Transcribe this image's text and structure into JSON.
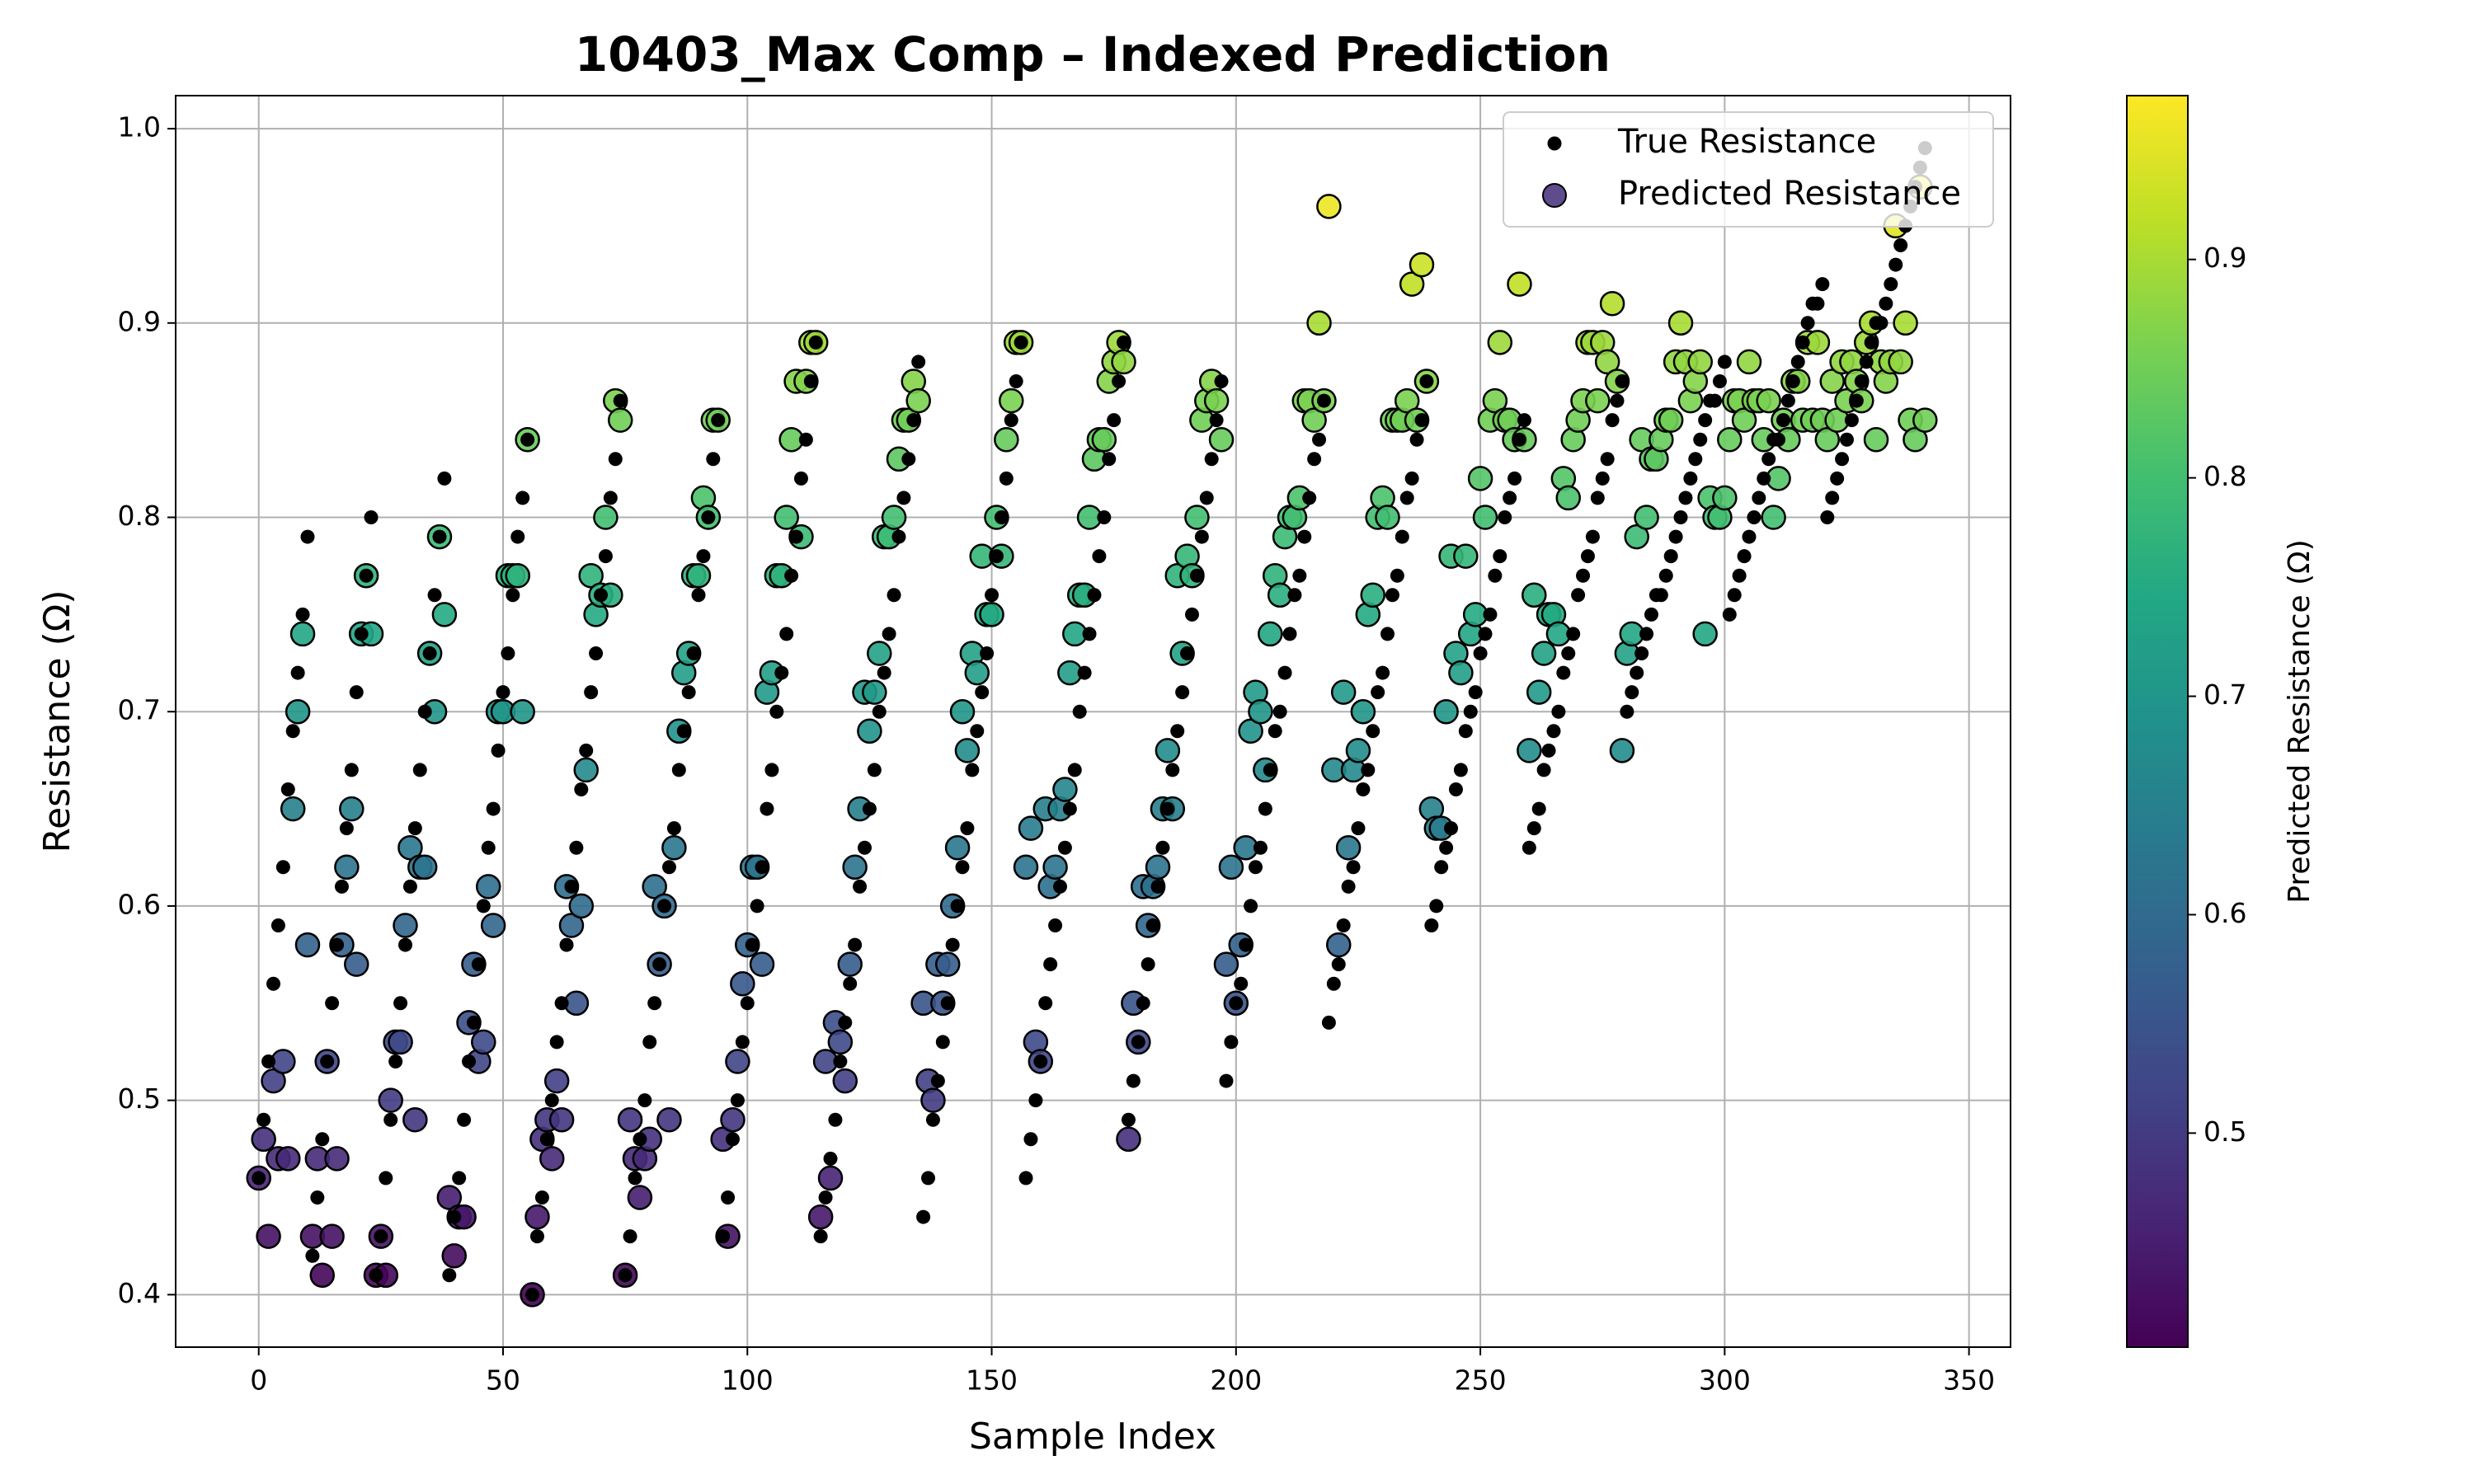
{
  "chart_data": {
    "type": "scatter",
    "title": "10403_Max Comp – Indexed Prediction",
    "x_label": "Sample Index",
    "y_label": "Resistance (Ω)",
    "x": [
      0,
      1,
      2,
      3,
      4,
      5,
      6,
      7,
      8,
      9,
      10,
      11,
      12,
      13,
      14,
      15,
      16,
      17,
      18,
      19,
      20,
      21,
      22,
      23,
      24,
      25,
      26,
      27,
      28,
      29,
      30,
      31,
      32,
      33,
      34,
      35,
      36,
      37,
      38,
      39,
      40,
      41,
      42,
      43,
      44,
      45,
      46,
      47,
      48,
      49,
      50,
      51,
      52,
      53,
      54,
      55,
      56,
      57,
      58,
      59,
      60,
      61,
      62,
      63,
      64,
      65,
      66,
      67,
      68,
      69,
      70,
      71,
      72,
      73,
      74,
      75,
      76,
      77,
      78,
      79,
      80,
      81,
      82,
      83,
      84,
      85,
      86,
      87,
      88,
      89,
      90,
      91,
      92,
      93,
      94,
      95,
      96,
      97,
      98,
      99,
      100,
      101,
      102,
      103,
      104,
      105,
      106,
      107,
      108,
      109,
      110,
      111,
      112,
      113,
      114,
      115,
      116,
      117,
      118,
      119,
      120,
      121,
      122,
      123,
      124,
      125,
      126,
      127,
      128,
      129,
      130,
      131,
      132,
      133,
      134,
      135,
      136,
      137,
      138,
      139,
      140,
      141,
      142,
      143,
      144,
      145,
      146,
      147,
      148,
      149,
      150,
      151,
      152,
      153,
      154,
      155,
      156,
      157,
      158,
      159,
      160,
      161,
      162,
      163,
      164,
      165,
      166,
      167,
      168,
      169,
      170,
      171,
      172,
      173,
      174,
      175,
      176,
      177,
      178,
      179,
      180,
      181,
      182,
      183,
      184,
      185,
      186,
      187,
      188,
      189,
      190,
      191,
      192,
      193,
      194,
      195,
      196,
      197,
      198,
      199,
      200,
      201,
      202,
      203,
      204,
      205,
      206,
      207,
      208,
      209,
      210,
      211,
      212,
      213,
      214,
      215,
      216,
      217,
      218,
      219,
      220,
      221,
      222,
      223,
      224,
      225,
      226,
      227,
      228,
      229,
      230,
      231,
      232,
      233,
      234,
      235,
      236,
      237,
      238,
      239,
      240,
      241,
      242,
      243,
      244,
      245,
      246,
      247,
      248,
      249,
      250,
      251,
      252,
      253,
      254,
      255,
      256,
      257,
      258,
      259,
      260,
      261,
      262,
      263,
      264,
      265,
      266,
      267,
      268,
      269,
      270,
      271,
      272,
      273,
      274,
      275,
      276,
      277,
      278,
      279,
      280,
      281,
      282,
      283,
      284,
      285,
      286,
      287,
      288,
      289,
      290,
      291,
      292,
      293,
      294,
      295,
      296,
      297,
      298,
      299,
      300,
      301,
      302,
      303,
      304,
      305,
      306,
      307,
      308,
      309,
      310,
      311,
      312,
      313,
      314,
      315,
      316,
      317,
      318,
      319,
      320,
      321,
      322,
      323,
      324,
      325,
      326,
      327,
      328,
      329,
      330,
      331,
      332,
      333,
      334,
      335,
      336,
      337,
      338,
      339,
      340,
      341
    ],
    "series": [
      {
        "name": "True Resistance",
        "color": "#000000",
        "values": [
          0.46,
          0.49,
          0.52,
          0.56,
          0.59,
          0.62,
          0.66,
          0.69,
          0.72,
          0.75,
          0.79,
          0.42,
          0.45,
          0.48,
          0.52,
          0.55,
          0.58,
          0.61,
          0.64,
          0.67,
          0.71,
          0.74,
          0.77,
          0.8,
          0.41,
          0.43,
          0.46,
          0.49,
          0.52,
          0.55,
          0.58,
          0.61,
          0.64,
          0.67,
          0.7,
          0.73,
          0.76,
          0.79,
          0.82,
          0.41,
          0.44,
          0.46,
          0.49,
          0.52,
          0.54,
          0.57,
          0.6,
          0.63,
          0.65,
          0.68,
          0.71,
          0.73,
          0.76,
          0.79,
          0.81,
          0.84,
          0.4,
          0.43,
          0.45,
          0.48,
          0.5,
          0.53,
          0.55,
          0.58,
          0.61,
          0.63,
          0.66,
          0.68,
          0.71,
          0.73,
          0.76,
          0.78,
          0.81,
          0.83,
          0.86,
          0.41,
          0.43,
          0.46,
          0.48,
          0.5,
          0.53,
          0.55,
          0.57,
          0.6,
          0.62,
          0.64,
          0.67,
          0.69,
          0.71,
          0.73,
          0.76,
          0.78,
          0.8,
          0.83,
          0.85,
          0.43,
          0.45,
          0.48,
          0.5,
          0.53,
          0.55,
          0.58,
          0.6,
          0.62,
          0.65,
          0.67,
          0.7,
          0.72,
          0.74,
          0.77,
          0.79,
          0.82,
          0.84,
          0.87,
          0.89,
          0.43,
          0.45,
          0.47,
          0.49,
          0.52,
          0.54,
          0.56,
          0.58,
          0.61,
          0.63,
          0.65,
          0.67,
          0.7,
          0.72,
          0.74,
          0.76,
          0.79,
          0.81,
          0.83,
          0.85,
          0.88,
          0.44,
          0.46,
          0.49,
          0.51,
          0.53,
          0.55,
          0.58,
          0.6,
          0.62,
          0.64,
          0.67,
          0.69,
          0.71,
          0.73,
          0.76,
          0.78,
          0.8,
          0.82,
          0.85,
          0.87,
          0.89,
          0.46,
          0.48,
          0.5,
          0.52,
          0.55,
          0.57,
          0.59,
          0.61,
          0.63,
          0.65,
          0.67,
          0.7,
          0.72,
          0.74,
          0.76,
          0.78,
          0.8,
          0.83,
          0.85,
          0.87,
          0.89,
          0.49,
          0.51,
          0.53,
          0.55,
          0.57,
          0.59,
          0.61,
          0.63,
          0.65,
          0.67,
          0.69,
          0.71,
          0.73,
          0.75,
          0.77,
          0.79,
          0.81,
          0.83,
          0.85,
          0.87,
          0.51,
          0.53,
          0.55,
          0.56,
          0.58,
          0.6,
          0.62,
          0.63,
          0.65,
          0.67,
          0.69,
          0.7,
          0.72,
          0.74,
          0.76,
          0.77,
          0.79,
          0.81,
          0.83,
          0.84,
          0.86,
          0.54,
          0.56,
          0.57,
          0.59,
          0.61,
          0.62,
          0.64,
          0.66,
          0.67,
          0.69,
          0.71,
          0.72,
          0.74,
          0.76,
          0.77,
          0.79,
          0.81,
          0.82,
          0.84,
          0.85,
          0.87,
          0.59,
          0.6,
          0.62,
          0.63,
          0.64,
          0.66,
          0.67,
          0.69,
          0.7,
          0.71,
          0.73,
          0.74,
          0.75,
          0.77,
          0.78,
          0.8,
          0.81,
          0.82,
          0.84,
          0.85,
          0.63,
          0.64,
          0.65,
          0.67,
          0.68,
          0.69,
          0.7,
          0.72,
          0.73,
          0.74,
          0.76,
          0.77,
          0.78,
          0.79,
          0.81,
          0.82,
          0.83,
          0.85,
          0.86,
          0.87,
          0.7,
          0.71,
          0.72,
          0.73,
          0.74,
          0.75,
          0.76,
          0.76,
          0.77,
          0.78,
          0.79,
          0.8,
          0.81,
          0.82,
          0.83,
          0.84,
          0.85,
          0.86,
          0.86,
          0.87,
          0.88,
          0.75,
          0.76,
          0.77,
          0.78,
          0.79,
          0.8,
          0.81,
          0.82,
          0.83,
          0.84,
          0.84,
          0.85,
          0.86,
          0.87,
          0.88,
          0.89,
          0.9,
          0.91,
          0.91,
          0.92,
          0.8,
          0.81,
          0.82,
          0.83,
          0.84,
          0.85,
          0.86,
          0.87,
          0.88,
          0.89,
          0.9,
          0.9,
          0.91,
          0.92,
          0.93,
          0.94,
          0.95,
          0.96,
          0.97,
          0.98,
          0.99
        ]
      },
      {
        "name": "Predicted Resistance",
        "colormap": "viridis",
        "values": [
          0.46,
          0.48,
          0.43,
          0.51,
          0.47,
          0.52,
          0.47,
          0.65,
          0.7,
          0.74,
          0.58,
          0.43,
          0.47,
          0.41,
          0.52,
          0.43,
          0.47,
          0.58,
          0.62,
          0.65,
          0.57,
          0.74,
          0.77,
          0.74,
          0.41,
          0.43,
          0.41,
          0.5,
          0.53,
          0.53,
          0.59,
          0.63,
          0.49,
          0.62,
          0.62,
          0.73,
          0.7,
          0.79,
          0.75,
          0.45,
          0.42,
          0.44,
          0.44,
          0.54,
          0.57,
          0.52,
          0.53,
          0.61,
          0.59,
          0.7,
          0.7,
          0.77,
          0.77,
          0.77,
          0.7,
          0.84,
          0.4,
          0.44,
          0.48,
          0.49,
          0.47,
          0.51,
          0.49,
          0.61,
          0.59,
          0.55,
          0.6,
          0.67,
          0.77,
          0.75,
          0.76,
          0.8,
          0.76,
          0.86,
          0.85,
          0.41,
          0.49,
          0.47,
          0.45,
          0.47,
          0.48,
          0.61,
          0.57,
          0.6,
          0.49,
          0.63,
          0.69,
          0.72,
          0.73,
          0.77,
          0.77,
          0.81,
          0.8,
          0.85,
          0.85,
          0.48,
          0.43,
          0.49,
          0.52,
          0.56,
          0.58,
          0.62,
          0.62,
          0.57,
          0.71,
          0.72,
          0.77,
          0.77,
          0.8,
          0.84,
          0.87,
          0.79,
          0.87,
          0.89,
          0.89,
          0.44,
          0.52,
          0.46,
          0.54,
          0.53,
          0.51,
          0.57,
          0.62,
          0.65,
          0.71,
          0.69,
          0.71,
          0.73,
          0.79,
          0.79,
          0.8,
          0.83,
          0.85,
          0.85,
          0.87,
          0.86,
          0.55,
          0.51,
          0.5,
          0.57,
          0.55,
          0.57,
          0.6,
          0.63,
          0.7,
          0.68,
          0.73,
          0.72,
          0.78,
          0.75,
          0.75,
          0.8,
          0.78,
          0.84,
          0.86,
          0.89,
          0.89,
          0.62,
          0.64,
          0.53,
          0.52,
          0.65,
          0.61,
          0.62,
          0.65,
          0.66,
          0.72,
          0.74,
          0.76,
          0.76,
          0.8,
          0.83,
          0.84,
          0.84,
          0.87,
          0.88,
          0.89,
          0.88,
          0.48,
          0.55,
          0.53,
          0.61,
          0.59,
          0.61,
          0.62,
          0.65,
          0.68,
          0.65,
          0.77,
          0.73,
          0.78,
          0.77,
          0.8,
          0.85,
          0.86,
          0.87,
          0.86,
          0.84,
          0.57,
          0.62,
          0.55,
          0.58,
          0.63,
          0.69,
          0.71,
          0.7,
          0.67,
          0.74,
          0.77,
          0.76,
          0.79,
          0.8,
          0.8,
          0.81,
          0.86,
          0.86,
          0.85,
          0.9,
          0.86,
          0.96,
          0.67,
          0.58,
          0.71,
          0.63,
          0.67,
          0.68,
          0.7,
          0.75,
          0.76,
          0.8,
          0.81,
          0.8,
          0.85,
          0.85,
          0.85,
          0.86,
          0.92,
          0.85,
          0.93,
          0.87,
          0.65,
          0.64,
          0.64,
          0.7,
          0.78,
          0.73,
          0.72,
          0.78,
          0.74,
          0.75,
          0.82,
          0.8,
          0.85,
          0.86,
          0.89,
          0.85,
          0.85,
          0.84,
          0.92,
          0.84,
          0.68,
          0.76,
          0.71,
          0.73,
          0.75,
          0.75,
          0.74,
          0.82,
          0.81,
          0.84,
          0.85,
          0.86,
          0.89,
          0.89,
          0.86,
          0.89,
          0.88,
          0.91,
          0.87,
          0.68,
          0.73,
          0.74,
          0.79,
          0.84,
          0.8,
          0.83,
          0.83,
          0.84,
          0.85,
          0.85,
          0.88,
          0.9,
          0.88,
          0.86,
          0.87,
          0.88,
          0.74,
          0.81,
          0.8,
          0.8,
          0.81,
          0.84,
          0.86,
          0.86,
          0.85,
          0.88,
          0.86,
          0.86,
          0.84,
          0.86,
          0.8,
          0.82,
          0.85,
          0.84,
          0.87,
          0.87,
          0.85,
          0.89,
          0.85,
          0.89,
          0.85,
          0.84,
          0.87,
          0.85,
          0.88,
          0.86,
          0.88,
          0.87,
          0.86,
          0.89,
          0.9,
          0.84,
          0.88,
          0.87,
          0.88,
          0.95,
          0.88,
          0.9,
          0.85,
          0.84,
          0.97,
          0.85
        ]
      }
    ],
    "xlim": [
      -17,
      358.5
    ],
    "ylim": [
      0.373,
      1.017
    ],
    "xticks": [
      0,
      50,
      100,
      150,
      200,
      250,
      300,
      350
    ],
    "yticks": [
      0.4,
      0.5,
      0.6,
      0.7,
      0.8,
      0.9,
      {
        "value": 1,
        "label": "1.0"
      }
    ],
    "grid": true,
    "legend": "upper right",
    "colorbar": {
      "label": "Predicted Resistance (Ω)",
      "clim": [
        0.402,
        0.975
      ],
      "ticks": [
        0.5,
        0.6,
        0.7,
        0.8,
        0.9
      ]
    }
  }
}
